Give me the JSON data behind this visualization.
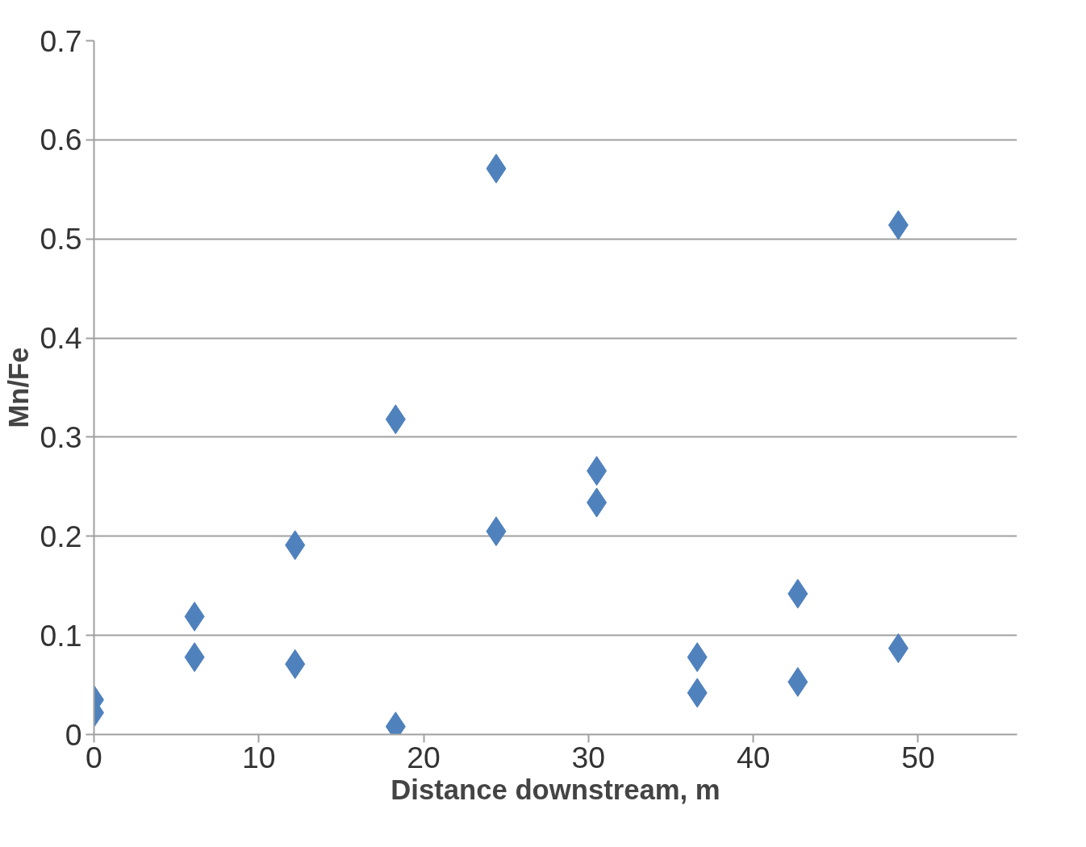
{
  "chart_data": {
    "type": "scatter",
    "xlabel": "Distance downstream, m",
    "ylabel": "Mn/Fe",
    "x": [
      0,
      0,
      6.1,
      6.1,
      12.2,
      12.2,
      18.3,
      18.3,
      24.4,
      24.4,
      30.5,
      30.5,
      36.6,
      36.6,
      42.7,
      42.7,
      48.8,
      48.8
    ],
    "series": [
      {
        "color": "#4f81bd",
        "values": [
          0.035,
          0.022,
          0.119,
          0.078,
          0.191,
          0.071,
          0.318,
          0.008,
          0.571,
          0.205,
          0.266,
          0.234,
          0.078,
          0.042,
          0.142,
          0.053,
          0.514,
          0.087
        ]
      }
    ],
    "xlim": [
      0,
      56
    ],
    "ylim": [
      0,
      0.7
    ],
    "xticks": [
      0,
      10,
      20,
      30,
      40,
      50
    ],
    "yticks": [
      {
        "value": 0,
        "label": "0"
      },
      0.1,
      0.2,
      0.3,
      0.4,
      0.5,
      0.6,
      0.7
    ],
    "grid": "y",
    "marker": "diamond"
  }
}
